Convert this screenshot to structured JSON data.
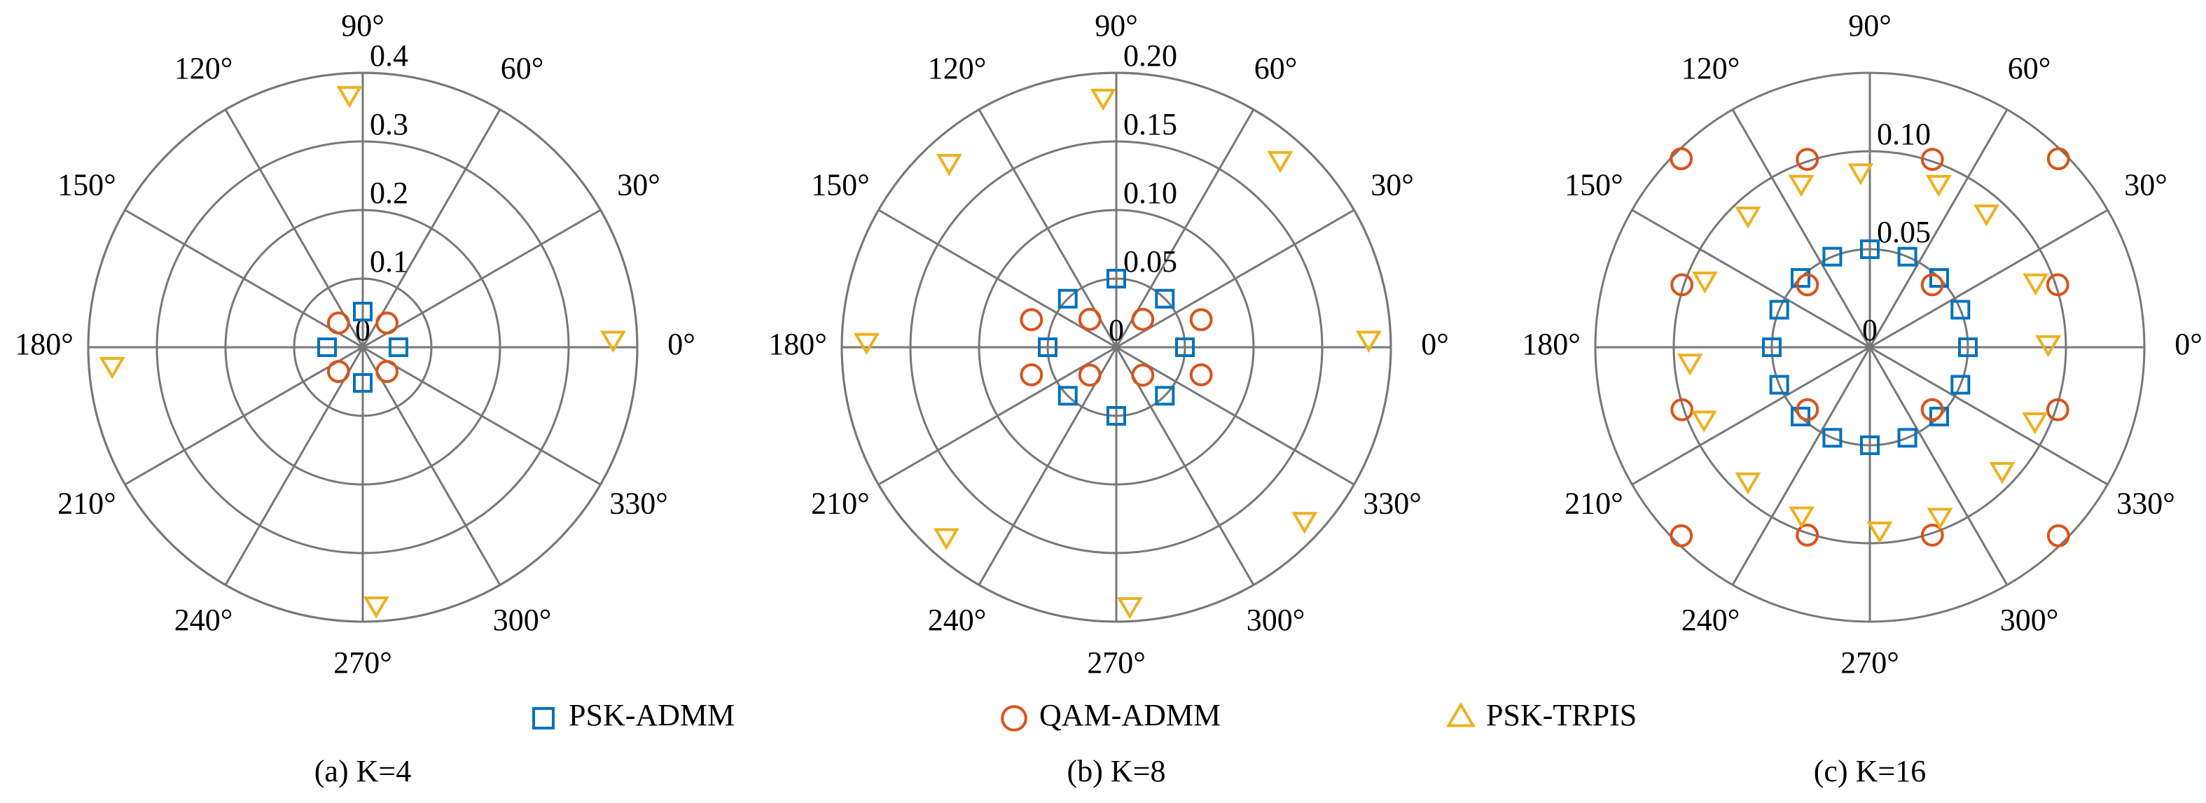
{
  "chart_data": [
    {
      "type": "polar-scatter",
      "caption": "(a) K=4",
      "rlim": [
        0,
        0.4
      ],
      "rticks": [
        0,
        0.1,
        0.2,
        0.3,
        0.4
      ],
      "thetaticks": [
        {
          "value": 0,
          "label": "0°"
        },
        {
          "value": 30,
          "label": "30°"
        },
        {
          "value": 60,
          "label": "60°"
        },
        {
          "value": 90,
          "label": "90°"
        },
        {
          "value": 120,
          "label": "120°"
        },
        {
          "value": 150,
          "label": "150°"
        },
        {
          "value": 180,
          "label": "180°"
        },
        {
          "value": 210,
          "label": "210°"
        },
        {
          "value": 240,
          "label": "240°"
        },
        {
          "value": 270,
          "label": "270°"
        },
        {
          "value": 300,
          "label": "300°"
        },
        {
          "value": 330,
          "label": "330°"
        }
      ],
      "series": [
        {
          "name": "PSK-ADMM",
          "color": "#0072bd",
          "marker": "square",
          "theta": [
            0,
            90,
            180,
            270
          ],
          "r": [
            0.052,
            0.052,
            0.052,
            0.052
          ]
        },
        {
          "name": "QAM-ADMM",
          "color": "#d95319",
          "marker": "circle",
          "theta": [
            45,
            135,
            225,
            315
          ],
          "r": [
            0.05,
            0.05,
            0.05,
            0.05
          ]
        },
        {
          "name": "PSK-TRPIS",
          "color": "#edb120",
          "marker": "triangle-down",
          "theta": [
            2,
            93,
            184,
            273
          ],
          "r": [
            0.365,
            0.37,
            0.366,
            0.375
          ]
        }
      ]
    },
    {
      "type": "polar-scatter",
      "caption": "(b) K=8",
      "rlim": [
        0,
        0.2
      ],
      "rticks": [
        0,
        0.05,
        {
          "value": 0.1,
          "label": "0.10"
        },
        0.15,
        {
          "value": 0.2,
          "label": "0.20"
        }
      ],
      "thetaticks": [
        {
          "value": 0,
          "label": "0°"
        },
        {
          "value": 30,
          "label": "30°"
        },
        {
          "value": 60,
          "label": "60°"
        },
        {
          "value": 90,
          "label": "90°"
        },
        {
          "value": 120,
          "label": "120°"
        },
        {
          "value": 150,
          "label": "150°"
        },
        {
          "value": 180,
          "label": "180°"
        },
        {
          "value": 210,
          "label": "210°"
        },
        {
          "value": 240,
          "label": "240°"
        },
        {
          "value": 270,
          "label": "270°"
        },
        {
          "value": 300,
          "label": "300°"
        },
        {
          "value": 330,
          "label": "330°"
        }
      ],
      "series": [
        {
          "name": "PSK-ADMM",
          "color": "#0072bd",
          "marker": "square",
          "theta": [
            0,
            45,
            90,
            135,
            180,
            225,
            270,
            315
          ],
          "r": [
            0.05,
            0.05,
            0.05,
            0.05,
            0.05,
            0.05,
            0.05,
            0.05
          ]
        },
        {
          "name": "QAM-ADMM",
          "color": "#d95319",
          "marker": "circle",
          "theta": [
            18,
            46.5,
            133.5,
            162,
            198,
            226.5,
            313.5,
            342
          ],
          "r": [
            0.065,
            0.028,
            0.028,
            0.065,
            0.065,
            0.028,
            0.028,
            0.065
          ]
        },
        {
          "name": "PSK-TRPIS",
          "color": "#edb120",
          "marker": "triangle-down",
          "theta": [
            2,
            49,
            93,
            132,
            178.5,
            228,
            273,
            317.5
          ],
          "r": [
            0.184,
            0.182,
            0.183,
            0.182,
            0.182,
            0.185,
            0.188,
            0.186
          ]
        }
      ]
    },
    {
      "type": "polar-scatter",
      "caption": "(c) K=16",
      "rlim": [
        0,
        0.14
      ],
      "rticks": [
        0,
        0.05,
        {
          "value": 0.1,
          "label": "0.10"
        }
      ],
      "thetaticks": [
        {
          "value": 0,
          "label": "0°"
        },
        {
          "value": 30,
          "label": "30°"
        },
        {
          "value": 60,
          "label": "60°"
        },
        {
          "value": 90,
          "label": "90°"
        },
        {
          "value": 120,
          "label": "120°"
        },
        {
          "value": 150,
          "label": "150°"
        },
        {
          "value": 180,
          "label": "180°"
        },
        {
          "value": 210,
          "label": "210°"
        },
        {
          "value": 240,
          "label": "240°"
        },
        {
          "value": 270,
          "label": "270°"
        },
        {
          "value": 300,
          "label": "300°"
        },
        {
          "value": 330,
          "label": "330°"
        }
      ],
      "series": [
        {
          "name": "PSK-ADMM",
          "color": "#0072bd",
          "marker": "square",
          "theta": [
            0,
            22.5,
            45,
            67.5,
            90,
            112.5,
            135,
            157.5,
            180,
            202.5,
            225,
            247.5,
            270,
            292.5,
            315,
            337.5
          ],
          "r": [
            0.05,
            0.05,
            0.05,
            0.05,
            0.05,
            0.05,
            0.05,
            0.05,
            0.05,
            0.05,
            0.05,
            0.05,
            0.05,
            0.05,
            0.05,
            0.05
          ]
        },
        {
          "name": "QAM-ADMM",
          "color": "#d95319",
          "marker": "circle",
          "theta": [
            18.4,
            45,
            45,
            71.6,
            108.4,
            135,
            135,
            161.6,
            198.4,
            225,
            225,
            251.6,
            288.4,
            315,
            315,
            341.6
          ],
          "r": [
            0.101,
            0.045,
            0.136,
            0.101,
            0.101,
            0.045,
            0.136,
            0.101,
            0.101,
            0.045,
            0.136,
            0.101,
            0.101,
            0.045,
            0.136,
            0.101
          ]
        },
        {
          "name": "PSK-TRPIS",
          "color": "#edb120",
          "marker": "triangle-down",
          "theta": [
            1.4,
            21.7,
            49.2,
            67.3,
            93,
            112.6,
            132.5,
            157.6,
            184.5,
            203.2,
            227.5,
            247.8,
            273.1,
            292.6,
            317.2,
            336.2
          ],
          "r": [
            0.091,
            0.091,
            0.091,
            0.091,
            0.09,
            0.091,
            0.092,
            0.091,
            0.092,
            0.092,
            0.092,
            0.092,
            0.093,
            0.093,
            0.092,
            0.092
          ]
        }
      ]
    }
  ]
}
